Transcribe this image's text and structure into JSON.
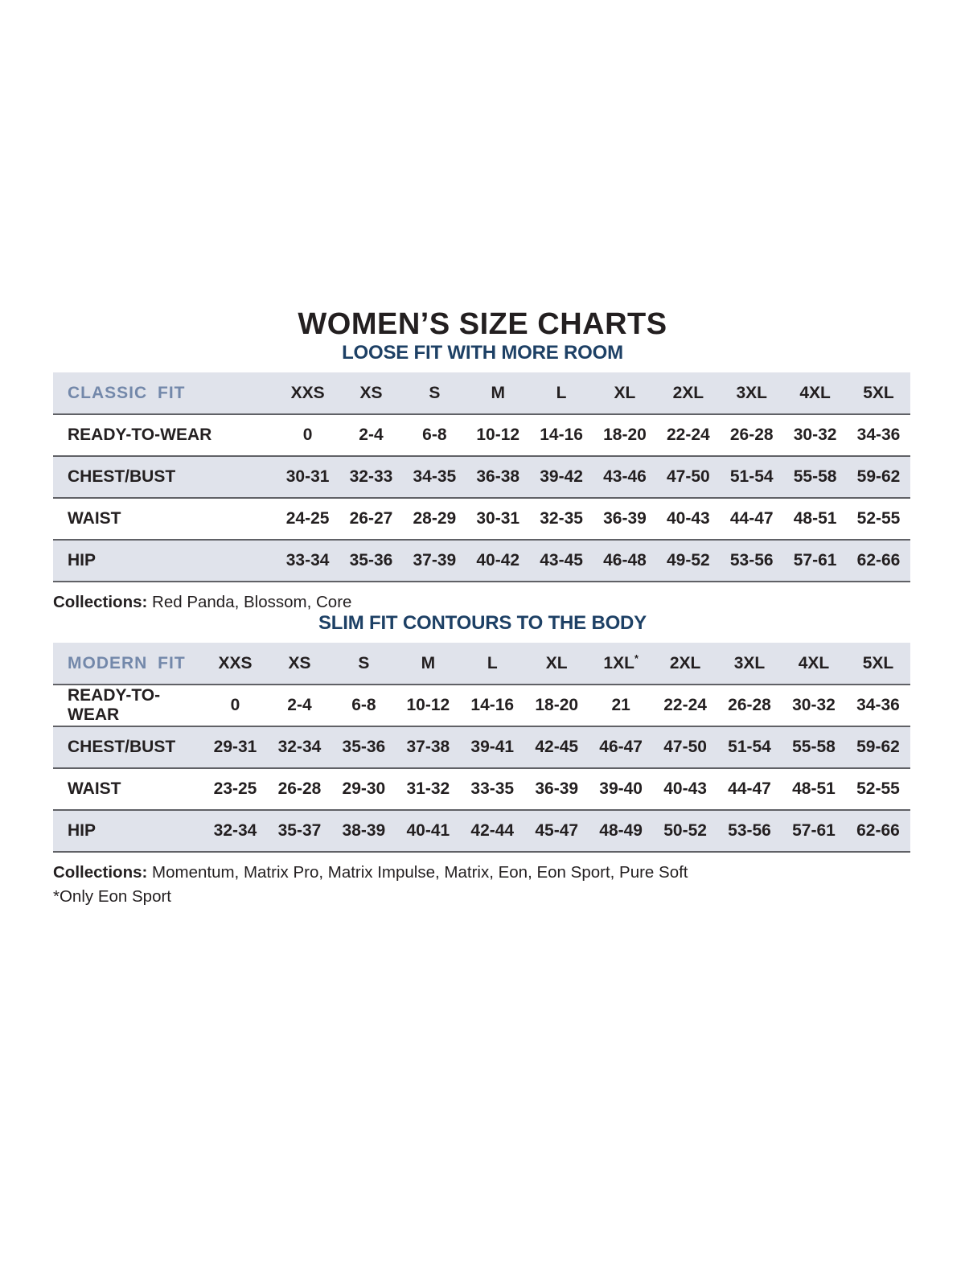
{
  "page": {
    "title": "WOMEN’S SIZE CHARTS"
  },
  "colors": {
    "title_text": "#231f20",
    "subtitle_navy": "#1d4065",
    "fit_label_blue": "#7388aa",
    "row_shade": "#e0e3eb",
    "divider_gray": "#606166"
  },
  "tables": [
    {
      "subtitle": "LOOSE FIT WITH MORE ROOM",
      "fit_label": "CLASSIC FIT",
      "sizes": [
        "XXS",
        "XS",
        "S",
        "M",
        "L",
        "XL",
        "2XL",
        "3XL",
        "4XL",
        "5XL"
      ],
      "rows": [
        {
          "label": "READY-TO-WEAR",
          "values": [
            "0",
            "2-4",
            "6-8",
            "10-12",
            "14-16",
            "18-20",
            "22-24",
            "26-28",
            "30-32",
            "34-36"
          ]
        },
        {
          "label": "CHEST/BUST",
          "values": [
            "30-31",
            "32-33",
            "34-35",
            "36-38",
            "39-42",
            "43-46",
            "47-50",
            "51-54",
            "55-58",
            "59-62"
          ]
        },
        {
          "label": "WAIST",
          "values": [
            "24-25",
            "26-27",
            "28-29",
            "30-31",
            "32-35",
            "36-39",
            "40-43",
            "44-47",
            "48-51",
            "52-55"
          ]
        },
        {
          "label": "HIP",
          "values": [
            "33-34",
            "35-36",
            "37-39",
            "40-42",
            "43-45",
            "46-48",
            "49-52",
            "53-56",
            "57-61",
            "62-66"
          ]
        }
      ],
      "collections_label": "Collections:",
      "collections": " Red Panda, Blossom, Core",
      "footnote": ""
    },
    {
      "subtitle": "SLIM FIT CONTOURS TO THE BODY",
      "fit_label": "MODERN FIT",
      "sizes": [
        "XXS",
        "XS",
        "S",
        "M",
        "L",
        "XL",
        "1XL*",
        "2XL",
        "3XL",
        "4XL",
        "5XL"
      ],
      "rows": [
        {
          "label": "READY-TO-WEAR",
          "values": [
            "0",
            "2-4",
            "6-8",
            "10-12",
            "14-16",
            "18-20",
            "21",
            "22-24",
            "26-28",
            "30-32",
            "34-36"
          ]
        },
        {
          "label": "CHEST/BUST",
          "values": [
            "29-31",
            "32-34",
            "35-36",
            "37-38",
            "39-41",
            "42-45",
            "46-47",
            "47-50",
            "51-54",
            "55-58",
            "59-62"
          ]
        },
        {
          "label": "WAIST",
          "values": [
            "23-25",
            "26-28",
            "29-30",
            "31-32",
            "33-35",
            "36-39",
            "39-40",
            "40-43",
            "44-47",
            "48-51",
            "52-55"
          ]
        },
        {
          "label": "HIP",
          "values": [
            "32-34",
            "35-37",
            "38-39",
            "40-41",
            "42-44",
            "45-47",
            "48-49",
            "50-52",
            "53-56",
            "57-61",
            "62-66"
          ]
        }
      ],
      "collections_label": "Collections:",
      "collections": " Momentum, Matrix Pro, Matrix Impulse, Matrix, Eon, Eon Sport, Pure Soft",
      "footnote": "*Only Eon Sport"
    }
  ]
}
